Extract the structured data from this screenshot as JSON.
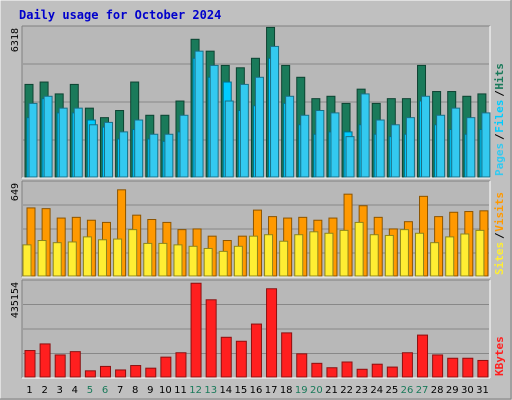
{
  "title": "Daily usage for October 2024",
  "colors": {
    "background": "#c0c0c0",
    "plot_bg": "#b8b8b8",
    "title": "#0000cc",
    "hits": "#1a7a5a",
    "files": "#00ccff",
    "pages": "#33c9f0",
    "visits": "#ff9900",
    "sites": "#ffee33",
    "kbytes": "#ff1f1f",
    "weekend_day": "#1a7a5a",
    "weekday": "#000000"
  },
  "chart_data": [
    {
      "type": "bar",
      "name": "hits-files-pages",
      "ymax_label": "6318",
      "ymax": 6318,
      "categories": [
        "1",
        "2",
        "3",
        "4",
        "5",
        "6",
        "7",
        "8",
        "9",
        "10",
        "11",
        "12",
        "13",
        "14",
        "15",
        "16",
        "17",
        "18",
        "19",
        "20",
        "21",
        "22",
        "23",
        "24",
        "25",
        "26",
        "27",
        "28",
        "29",
        "30",
        "31"
      ],
      "weekend_days": [
        "5",
        "6",
        "12",
        "13",
        "19",
        "20",
        "26",
        "27"
      ],
      "series": [
        {
          "name": "Hits",
          "color_key": "hits",
          "values": [
            3900,
            4000,
            3500,
            3900,
            2900,
            2500,
            2800,
            4000,
            2600,
            2600,
            3200,
            5800,
            5300,
            4700,
            4600,
            5000,
            6300,
            4700,
            4200,
            3300,
            3400,
            3100,
            3700,
            3100,
            3300,
            3300,
            4700,
            3600,
            3600,
            3400,
            3500
          ]
        },
        {
          "name": "Files",
          "color_key": "files",
          "values": [
            2500,
            3300,
            2700,
            2700,
            2400,
            2100,
            1600,
            2000,
            1600,
            1500,
            1900,
            5000,
            4200,
            4000,
            2800,
            3000,
            5000,
            3100,
            2200,
            1800,
            1900,
            1900,
            2200,
            1800,
            1700,
            1800,
            3200,
            2200,
            2000,
            1800,
            2000
          ]
        },
        {
          "name": "Pages",
          "color_key": "pages",
          "values": [
            3100,
            3400,
            2900,
            2900,
            2200,
            2300,
            1900,
            2400,
            1800,
            1800,
            2600,
            5300,
            4700,
            3200,
            3900,
            4200,
            5500,
            3400,
            2600,
            2800,
            2700,
            1700,
            3500,
            2400,
            2200,
            2500,
            3400,
            2600,
            2900,
            2500,
            2700
          ]
        }
      ],
      "legend": [
        "Pages",
        "Files",
        "Hits"
      ]
    },
    {
      "type": "bar",
      "name": "visits-sites",
      "ymax_label": "649",
      "ymax": 649,
      "series": [
        {
          "name": "Visits",
          "color_key": "visits",
          "values": [
            470,
            465,
            400,
            405,
            385,
            370,
            595,
            420,
            390,
            370,
            320,
            325,
            275,
            245,
            275,
            455,
            410,
            400,
            405,
            385,
            400,
            565,
            485,
            405,
            325,
            375,
            550,
            410,
            440,
            445,
            450
          ]
        },
        {
          "name": "Sites",
          "color_key": "sites",
          "values": [
            215,
            245,
            230,
            235,
            270,
            250,
            255,
            320,
            225,
            225,
            215,
            205,
            190,
            170,
            205,
            275,
            285,
            240,
            285,
            305,
            295,
            315,
            370,
            285,
            280,
            320,
            295,
            230,
            270,
            290,
            315
          ]
        }
      ],
      "legend": [
        "Sites",
        "Visits"
      ]
    },
    {
      "type": "bar",
      "name": "kbytes",
      "ymax_label": "435154",
      "ymax": 435154,
      "series": [
        {
          "name": "KBytes",
          "color_key": "kbytes",
          "values": [
            120000,
            150000,
            100000,
            115000,
            28000,
            48000,
            32000,
            52000,
            40000,
            90000,
            110000,
            425000,
            350000,
            180000,
            162000,
            240000,
            400000,
            200000,
            105000,
            62000,
            42000,
            68000,
            35000,
            58000,
            45000,
            110000,
            190000,
            100000,
            85000,
            85000,
            75000
          ]
        }
      ],
      "legend": [
        "KBytes"
      ]
    }
  ]
}
